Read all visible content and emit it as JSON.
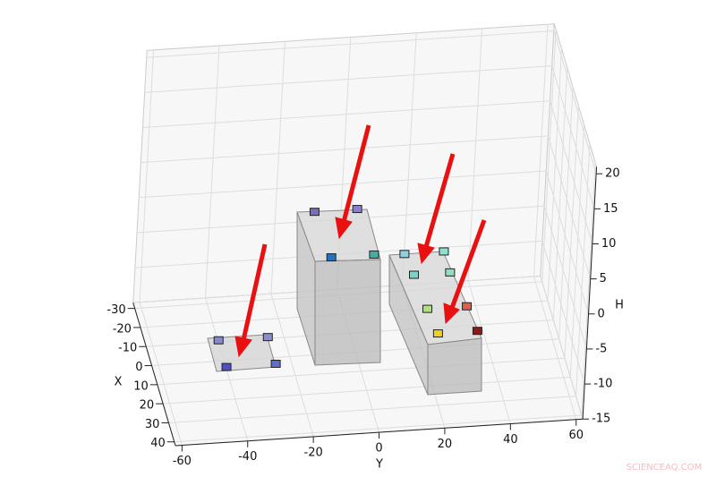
{
  "chart_data": {
    "type": "scatter3d",
    "xlabel": "X",
    "ylabel": "Y",
    "zlabel": "H",
    "xlim": [
      -33,
      42
    ],
    "ylim": [
      -62,
      62
    ],
    "zlim": [
      -15,
      21
    ],
    "xticks": [
      -30,
      -20,
      -10,
      0,
      10,
      20,
      30,
      40
    ],
    "yticks": [
      -60,
      -40,
      -20,
      0,
      20,
      40,
      60
    ],
    "zticks": [
      -15,
      -10,
      -5,
      0,
      5,
      10,
      15,
      20
    ],
    "grid": true,
    "series": [
      {
        "x": [
          0,
          0,
          14,
          14,
          -9,
          -9,
          15,
          15,
          -13,
          -13,
          -2,
          -2,
          16,
          16,
          29,
          29
        ],
        "y": [
          -42,
          -27,
          -42,
          -27,
          -13,
          0,
          -12,
          1,
          16,
          28,
          17,
          28,
          18,
          30,
          19,
          31
        ],
        "z": [
          -12,
          -12,
          -12,
          -12,
          3,
          3,
          3,
          3,
          -5,
          -5,
          -5,
          -5,
          -5,
          -5,
          -5,
          -5
        ],
        "colors": [
          "#8888cc",
          "#8c8cd0",
          "#5050c0",
          "#6070c8",
          "#7a6cc0",
          "#8a80c8",
          "#2a70b8",
          "#40b0a0",
          "#90d0e0",
          "#90e0d0",
          "#80d0c8",
          "#90e0c0",
          "#b0e080",
          "#e06050",
          "#f0d020",
          "#8b1a1a"
        ]
      }
    ],
    "watermark": "SCIENCEAQ.COM"
  }
}
